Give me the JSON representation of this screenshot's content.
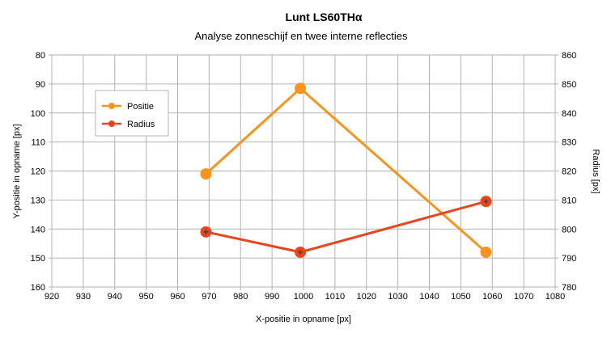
{
  "chart_data": {
    "type": "line",
    "title": "Lunt LS60THα",
    "subtitle": "Analyse zonneschijf en twee interne reflecties",
    "xlabel": "X-positie in opname [px]",
    "ylabel_left": "Y-positie in opname [px]",
    "ylabel_right": "Radius [px]",
    "xlim": [
      920,
      1080
    ],
    "x_ticks": [
      "920",
      "930",
      "940",
      "950",
      "960",
      "970",
      "980",
      "990",
      "1000",
      "1010",
      "1020",
      "1030",
      "1040",
      "1050",
      "1060",
      "1070",
      "1080"
    ],
    "y_left_lim": [
      80,
      160
    ],
    "y_left_inverted": true,
    "y_left_ticks": [
      "80",
      "90",
      "100",
      "110",
      "120",
      "130",
      "140",
      "150",
      "160"
    ],
    "y_right_lim": [
      780,
      860
    ],
    "y_right_ticks": [
      "860",
      "850",
      "840",
      "830",
      "820",
      "810",
      "800",
      "790",
      "780"
    ],
    "grid": true,
    "legend_position": "top-left",
    "series": [
      {
        "name": "Positie",
        "axis": "left",
        "color": "#f7941d",
        "x": [
          969,
          999,
          1058
        ],
        "y": [
          121,
          91.5,
          148
        ]
      },
      {
        "name": "Radius",
        "axis": "right",
        "color": "#e8461a",
        "x": [
          969,
          999,
          1058
        ],
        "y": [
          799,
          792,
          809.5
        ]
      }
    ]
  }
}
